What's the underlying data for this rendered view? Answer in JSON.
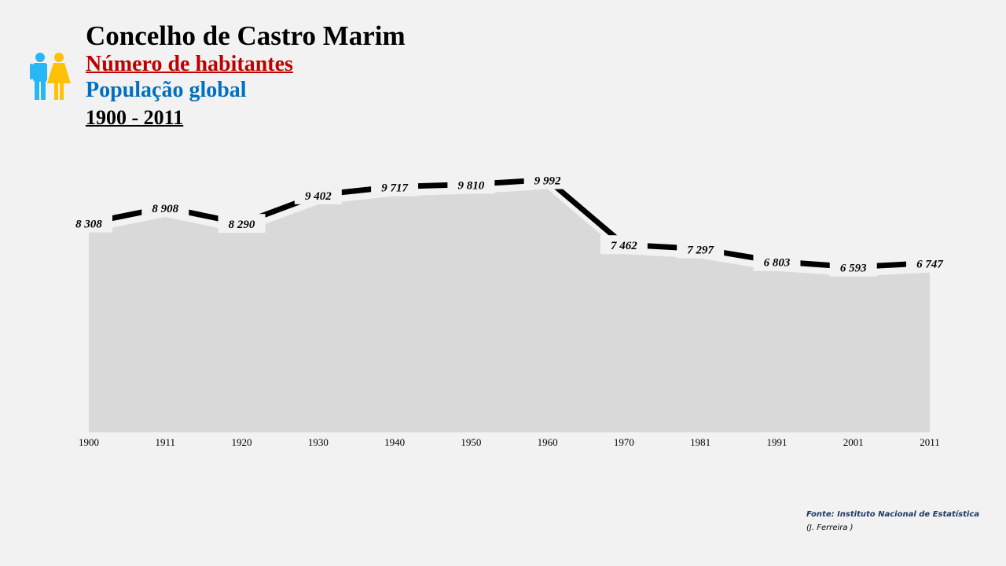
{
  "header": {
    "title": "Concelho de Castro Marim",
    "subtitle": "Número de habitantes",
    "subtitle2": "População global",
    "period": "1900 - 2011",
    "icon": "people-male-female-icon"
  },
  "chart_data": {
    "type": "area",
    "categories": [
      "1900",
      "1911",
      "1920",
      "1930",
      "1940",
      "1950",
      "1960",
      "1970",
      "1981",
      "1991",
      "2001",
      "2011"
    ],
    "values": [
      8308,
      8908,
      8290,
      9402,
      9717,
      9810,
      9992,
      7462,
      7297,
      6803,
      6593,
      6747
    ],
    "labels": [
      "8 308",
      "8 908",
      "8 290",
      "9 402",
      "9 717",
      "9 810",
      "9 992",
      "7 462",
      "7 297",
      "6 803",
      "6 593",
      "6 747"
    ],
    "ylim": [
      0,
      10000
    ],
    "grid": false,
    "colors": {
      "line": "#000000",
      "fill": "#d9d9d9",
      "label_bg": "#f2f2f2"
    }
  },
  "footer": {
    "source": "Fonte: Instituto Nacional de Estatística",
    "author": "(J. Ferreira )"
  }
}
